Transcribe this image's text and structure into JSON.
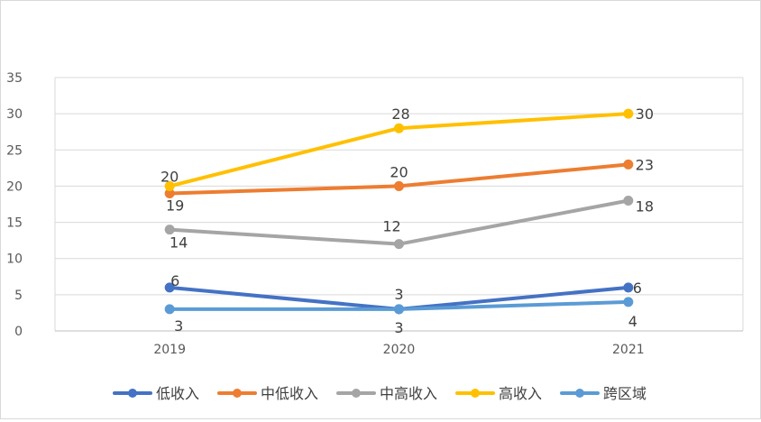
{
  "chart_data": {
    "type": "line",
    "title": "",
    "xlabel": "",
    "ylabel": "",
    "categories": [
      "2019",
      "2020",
      "2021"
    ],
    "ylim": [
      0,
      35
    ],
    "yticks": [
      0,
      5,
      10,
      15,
      20,
      25,
      30,
      35
    ],
    "ytick_labels": [
      "0",
      "5",
      "10",
      "15",
      "20",
      "25",
      "30",
      "35"
    ],
    "grid": true,
    "legend_position": "bottom",
    "series": [
      {
        "name": "低收入",
        "values": [
          6,
          3,
          6
        ],
        "labels": [
          "6",
          "3",
          "6"
        ],
        "color": "#4472C4"
      },
      {
        "name": "中低收入",
        "values": [
          19,
          20,
          23
        ],
        "labels": [
          "19",
          "20",
          "23"
        ],
        "color": "#ED7D31"
      },
      {
        "name": "中高收入",
        "values": [
          14,
          12,
          18
        ],
        "labels": [
          "14",
          "12",
          "18"
        ],
        "color": "#A5A5A5"
      },
      {
        "name": "高收入",
        "values": [
          20,
          28,
          30
        ],
        "labels": [
          "20",
          "28",
          "30"
        ],
        "color": "#FFC000"
      },
      {
        "name": "跨区域",
        "values": [
          3,
          3,
          4
        ],
        "labels": [
          "3",
          "3",
          "4"
        ],
        "color": "#5B9BD5"
      }
    ]
  }
}
